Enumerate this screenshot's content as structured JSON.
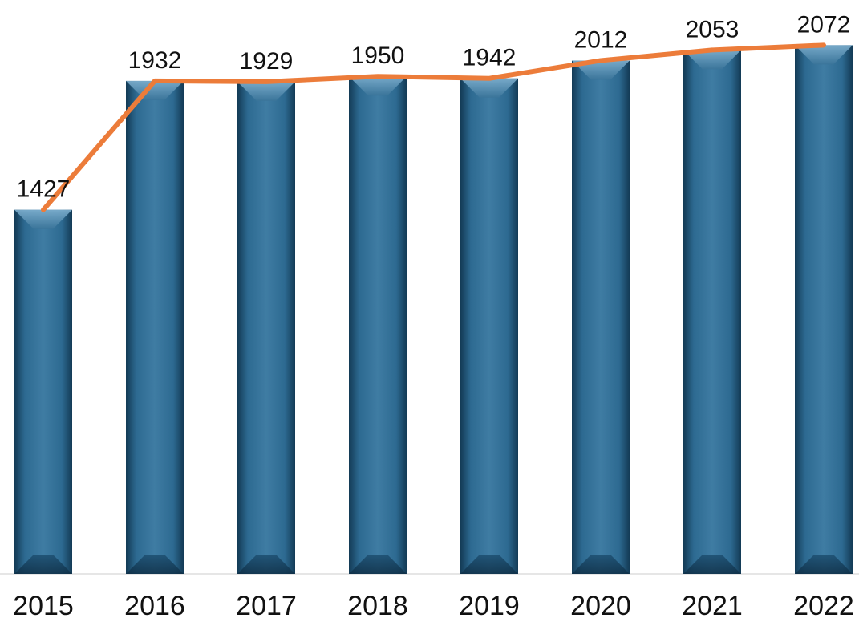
{
  "chart_data": {
    "type": "bar",
    "categories": [
      "2015",
      "2016",
      "2017",
      "2018",
      "2019",
      "2020",
      "2021",
      "2022"
    ],
    "series": [
      {
        "values": [
          1427,
          1932,
          1929,
          1950,
          1942,
          2012,
          2053,
          2072
        ]
      }
    ],
    "overlay_line": true,
    "data_labels": true,
    "title": "",
    "xlabel": "",
    "ylabel": "",
    "ylim": [
      0,
      2070
    ],
    "grid": false,
    "legend": "none",
    "colors": {
      "bar_dark": "#143d59",
      "bar_mid": "#2e6c94",
      "bar_light": "#4f87aa",
      "line": "#ec7c3a",
      "axis": "#e6e6e6",
      "text": "#111111"
    }
  }
}
